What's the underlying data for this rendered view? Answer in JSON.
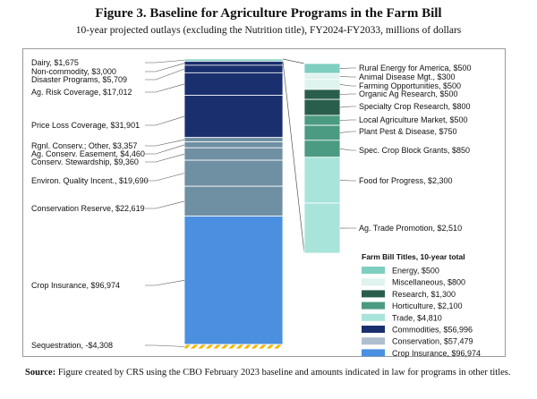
{
  "title": "Figure 3. Baseline for Agriculture Programs in the Farm Bill",
  "subtitle": "10-year projected outlays (excluding the Nutrition title), FY2024-FY2033, millions of dollars",
  "source_label": "Source:",
  "source_text": " Figure created by CRS using the CBO February 2023 baseline and amounts indicated in law for programs in other titles.",
  "chart_data": [
    {
      "type": "bar",
      "stacked": true,
      "name": "main-stack",
      "series": [
        {
          "label": "Dairy, $1,675",
          "value": 1675,
          "color": "#7ecfc0"
        },
        {
          "label": "Non-commodity, $3,000",
          "value": 3000,
          "color": "#1a2f6e"
        },
        {
          "label": "Disaster Programs, $5,709",
          "value": 5709,
          "color": "#1a2f6e"
        },
        {
          "label": "Ag. Risk Coverage, $17,012",
          "value": 17012,
          "color": "#1a2f6e"
        },
        {
          "label": "Price Loss Coverage, $31,901",
          "value": 31901,
          "color": "#1a2f6e"
        },
        {
          "label": "Rgnl. Conserv.; Other, $3,357",
          "value": 3357,
          "color": "#6f8fa3"
        },
        {
          "label": "Ag. Conserv. Easement, $4,460",
          "value": 4460,
          "color": "#6f8fa3"
        },
        {
          "label": "Conserv. Stewardship, $9,360",
          "value": 9360,
          "color": "#6f8fa3"
        },
        {
          "label": "Environ. Quality Incent., $19,690",
          "value": 19690,
          "color": "#6f8fa3"
        },
        {
          "label": "Conservation Reserve, $22,619",
          "value": 22619,
          "color": "#6f8fa3"
        },
        {
          "label": "Crop Insurance, $96,974",
          "value": 96974,
          "color": "#4a8fe0"
        },
        {
          "label": "Sequestration, -$4,308",
          "value": -4308,
          "color": "#f2b600"
        }
      ]
    },
    {
      "type": "bar",
      "stacked": true,
      "name": "other-titles-stack",
      "series": [
        {
          "label": "Rural Energy for America, $500",
          "value": 500,
          "color": "#7ecfc0"
        },
        {
          "label": "Animal Disease Mgt., $300",
          "value": 300,
          "color": "#dff3ef"
        },
        {
          "label": "Farming Opportunities, $500",
          "value": 500,
          "color": "#dff3ef"
        },
        {
          "label": "Organic Ag Research, $500",
          "value": 500,
          "color": "#2a5e4c"
        },
        {
          "label": "Specialty Crop Research, $800",
          "value": 800,
          "color": "#2a5e4c"
        },
        {
          "label": "Local Agriculture Market, $500",
          "value": 500,
          "color": "#4b9a82"
        },
        {
          "label": "Plant Pest & Disease, $750",
          "value": 750,
          "color": "#4b9a82"
        },
        {
          "label": "Spec. Crop Block Grants, $850",
          "value": 850,
          "color": "#4b9a82"
        },
        {
          "label": "Food for Progress, $2,300",
          "value": 2300,
          "color": "#a8e4da"
        },
        {
          "label": "Ag. Trade Promotion, $2,510",
          "value": 2510,
          "color": "#a8e4da"
        }
      ]
    }
  ],
  "legend": {
    "title": "Farm Bill Titles, 10-year total",
    "items": [
      {
        "label": "Energy, $500",
        "color": "#7ecfc0"
      },
      {
        "label": "Miscellaneous, $800",
        "color": "#dff3ef"
      },
      {
        "label": "Research, $1,300",
        "color": "#2a5e4c"
      },
      {
        "label": "Horticulture, $2,100",
        "color": "#4b9a82"
      },
      {
        "label": "Trade, $4,810",
        "color": "#a8e4da"
      },
      {
        "label": "Commodities, $56,996",
        "color": "#1a2f6e"
      },
      {
        "label": "Conservation, $57,479",
        "color": "#aebfd0"
      },
      {
        "label": "Crop Insurance, $96,974",
        "color": "#4a8fe0"
      }
    ]
  }
}
